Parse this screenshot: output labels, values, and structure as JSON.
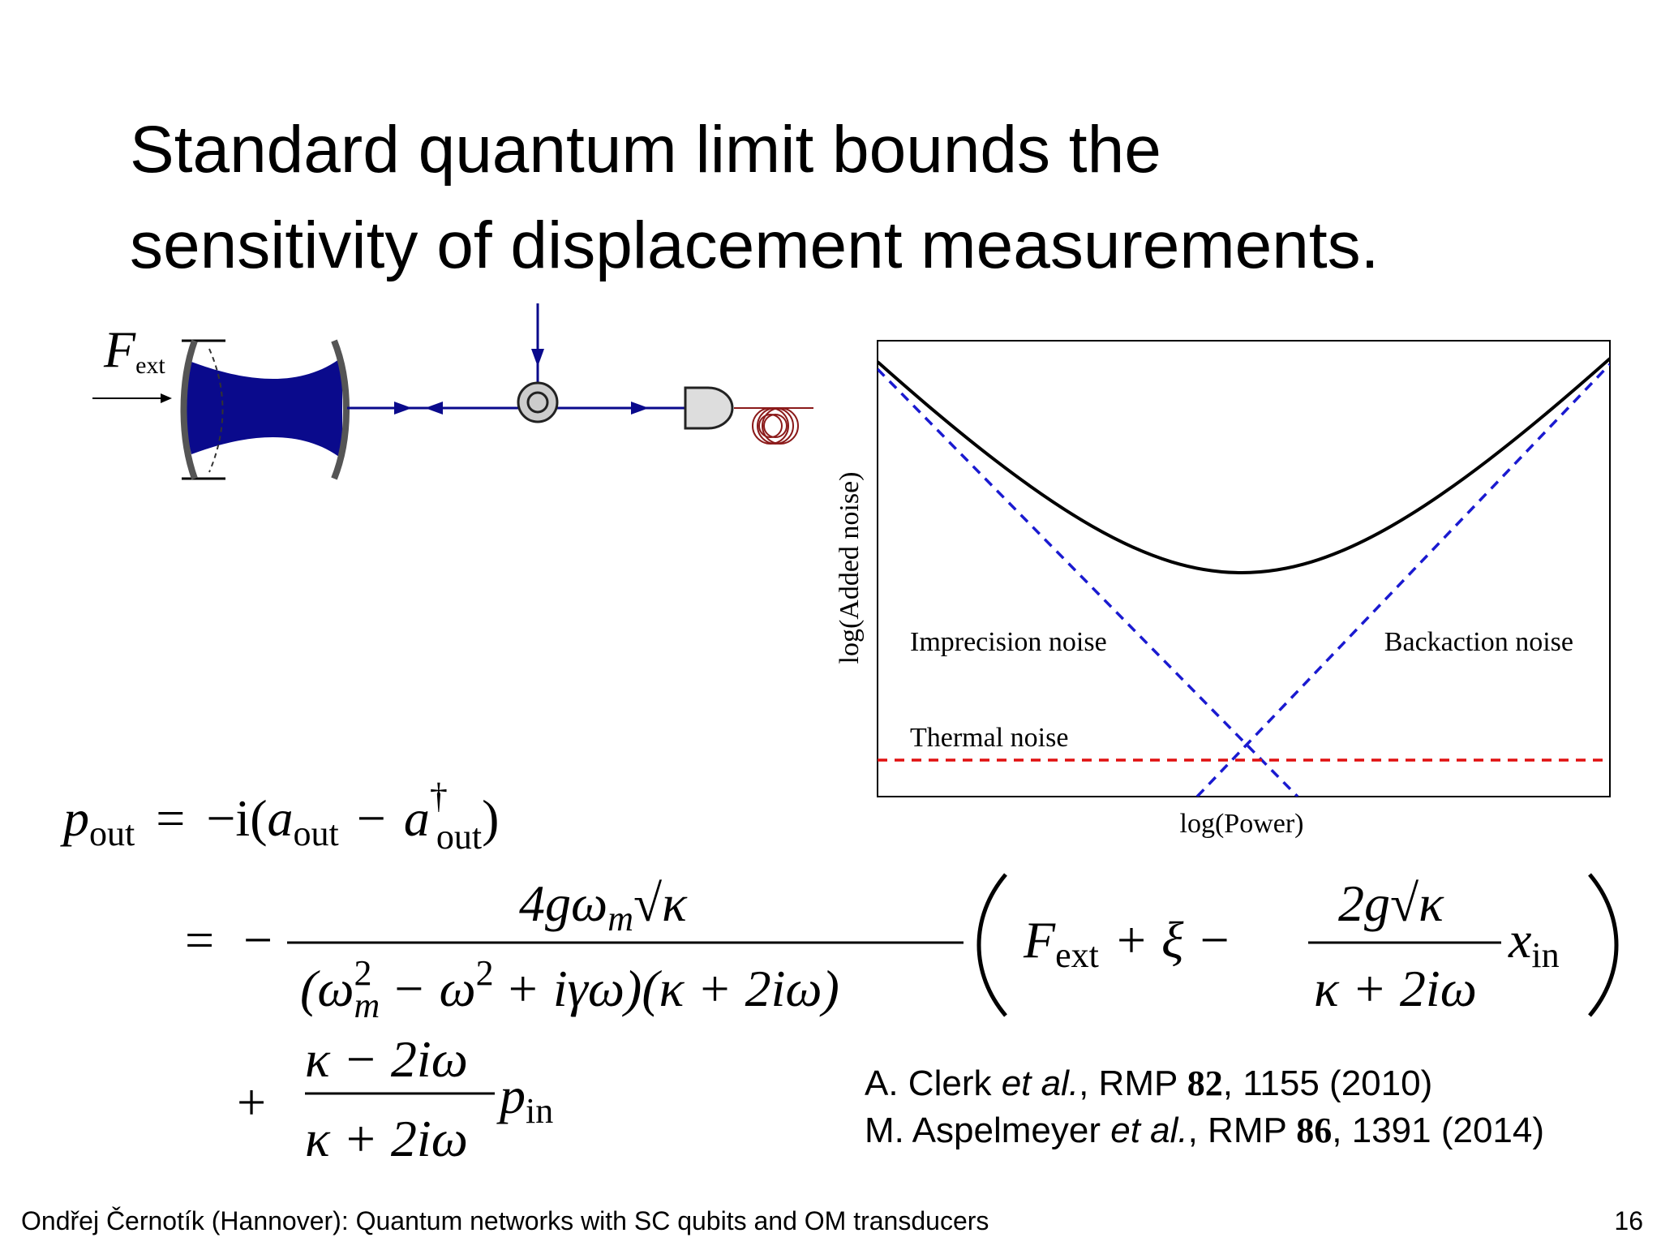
{
  "title": [
    "Standard quantum limit bounds the",
    "sensitivity of displacement measurements."
  ],
  "diagram": {
    "force_label": [
      "F",
      "ext"
    ]
  },
  "plot": {
    "ylabel": "log(Added noise)",
    "xlabel": "log(Power)",
    "labels": [
      "Imprecision noise",
      "Backaction noise",
      "Thermal noise"
    ]
  },
  "equations": [
    [
      "p",
      "out",
      "=",
      "−i(",
      "a",
      "out",
      "−",
      "a",
      "†",
      "out",
      ")"
    ],
    [
      "=",
      "−",
      "4gω",
      "m",
      "√κ",
      "(ω",
      "2",
      "m",
      "− ω",
      "2",
      "+ iγω)(κ + 2iω)",
      "F",
      "ext",
      "+ ξ −",
      "2g",
      "√κ",
      "κ + 2iω",
      "x",
      "in"
    ],
    [
      "+",
      "κ − 2iω",
      "κ + 2iω",
      "p",
      "in"
    ]
  ],
  "references": [
    [
      "A. Clerk ",
      "et al.",
      ", RMP ",
      "82",
      ", 1155 (2010)"
    ],
    [
      "M. Aspelmeyer ",
      "et al.",
      ", RMP ",
      "86",
      ", 1391 (2014)"
    ]
  ],
  "footer": {
    "text": "Ondřej Černotík (Hannover): Quantum networks with SC qubits and OM transducers",
    "page": "16"
  }
}
